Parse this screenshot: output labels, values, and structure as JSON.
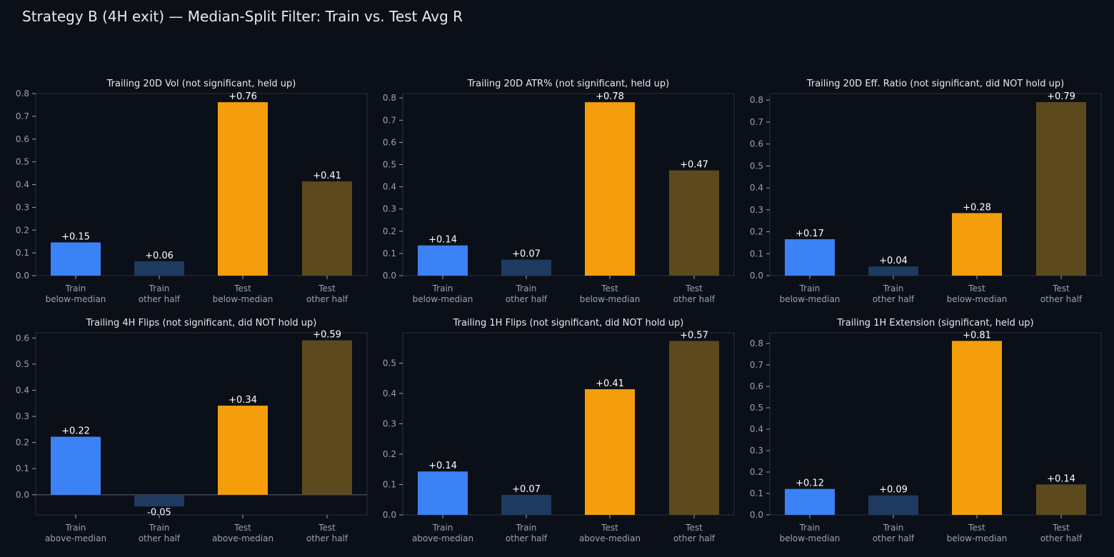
{
  "title": "Strategy B (4H exit) — Median-Split Filter: Train vs. Test Avg R",
  "colors": {
    "background": "#0b0f18",
    "panel_border": "#2a3242",
    "train_focus": "#3b82f6",
    "train_other": "#1e3a5f",
    "test_focus": "#f59e0b",
    "test_other": "#5c4a1e",
    "axis_text": "#9aa3b2",
    "label_text": "#ffffff"
  },
  "chart_data": [
    {
      "type": "bar",
      "title": "Trailing 20D Vol (not significant, held up)",
      "categories": [
        "Train\nbelow-median",
        "Train\nother half",
        "Test\nbelow-median",
        "Test\nother half"
      ],
      "values": [
        0.146,
        0.063,
        0.762,
        0.414
      ],
      "labels": [
        "+0.15",
        "+0.06",
        "+0.76",
        "+0.41"
      ],
      "ylim": [
        0,
        0.8
      ],
      "yticks": [
        0.0,
        0.1,
        0.2,
        0.3,
        0.4,
        0.5,
        0.6,
        0.7,
        0.8
      ],
      "tick_labels": [
        "0.0",
        "0.1",
        "0.2",
        "0.3",
        "0.4",
        "0.5",
        "0.6",
        "0.7",
        "0.8"
      ]
    },
    {
      "type": "bar",
      "title": "Trailing 20D ATR% (not significant, held up)",
      "categories": [
        "Train\nbelow-median",
        "Train\nother half",
        "Test\nbelow-median",
        "Test\nother half"
      ],
      "values": [
        0.136,
        0.072,
        0.781,
        0.474
      ],
      "labels": [
        "+0.14",
        "+0.07",
        "+0.78",
        "+0.47"
      ],
      "ylim": [
        0,
        0.82
      ],
      "yticks": [
        0.0,
        0.1,
        0.2,
        0.3,
        0.4,
        0.5,
        0.6,
        0.7,
        0.8
      ],
      "tick_labels": [
        "0.0",
        "0.1",
        "0.2",
        "0.3",
        "0.4",
        "0.5",
        "0.6",
        "0.7",
        "0.8"
      ]
    },
    {
      "type": "bar",
      "title": "Trailing 20D Eff. Ratio (not significant, did NOT hold up)",
      "categories": [
        "Train\nbelow-median",
        "Train\nother half",
        "Test\nbelow-median",
        "Test\nother half"
      ],
      "values": [
        0.166,
        0.042,
        0.285,
        0.791
      ],
      "labels": [
        "+0.17",
        "+0.04",
        "+0.28",
        "+0.79"
      ],
      "ylim": [
        0,
        0.83
      ],
      "yticks": [
        0.0,
        0.1,
        0.2,
        0.3,
        0.4,
        0.5,
        0.6,
        0.7,
        0.8
      ],
      "tick_labels": [
        "0.0",
        "0.1",
        "0.2",
        "0.3",
        "0.4",
        "0.5",
        "0.6",
        "0.7",
        "0.8"
      ]
    },
    {
      "type": "bar",
      "title": "Trailing 4H Flips (not significant, did NOT hold up)",
      "categories": [
        "Train\nabove-median",
        "Train\nother half",
        "Test\nabove-median",
        "Test\nother half"
      ],
      "values": [
        0.222,
        -0.045,
        0.341,
        0.591
      ],
      "labels": [
        "+0.22",
        "-0.05",
        "+0.34",
        "+0.59"
      ],
      "ylim": [
        -0.077,
        0.62
      ],
      "yticks": [
        0.0,
        0.1,
        0.2,
        0.3,
        0.4,
        0.5,
        0.6
      ],
      "tick_labels": [
        "0.0",
        "0.1",
        "0.2",
        "0.3",
        "0.4",
        "0.5",
        "0.6"
      ]
    },
    {
      "type": "bar",
      "title": "Trailing 1H Flips (not significant, did NOT hold up)",
      "categories": [
        "Train\nabove-median",
        "Train\nother half",
        "Test\nabove-median",
        "Test\nother half"
      ],
      "values": [
        0.143,
        0.066,
        0.414,
        0.573
      ],
      "labels": [
        "+0.14",
        "+0.07",
        "+0.41",
        "+0.57"
      ],
      "ylim": [
        0,
        0.6
      ],
      "yticks": [
        0.0,
        0.1,
        0.2,
        0.3,
        0.4,
        0.5
      ],
      "tick_labels": [
        "0.0",
        "0.1",
        "0.2",
        "0.3",
        "0.4",
        "0.5"
      ]
    },
    {
      "type": "bar",
      "title": "Trailing 1H Extension (significant, held up)",
      "categories": [
        "Train\nbelow-median",
        "Train\nother half",
        "Test\nbelow-median",
        "Test\nother half"
      ],
      "values": [
        0.121,
        0.091,
        0.812,
        0.142
      ],
      "labels": [
        "+0.12",
        "+0.09",
        "+0.81",
        "+0.14"
      ],
      "ylim": [
        0,
        0.85
      ],
      "yticks": [
        0.0,
        0.1,
        0.2,
        0.3,
        0.4,
        0.5,
        0.6,
        0.7,
        0.8
      ],
      "tick_labels": [
        "0.0",
        "0.1",
        "0.2",
        "0.3",
        "0.4",
        "0.5",
        "0.6",
        "0.7",
        "0.8"
      ]
    }
  ]
}
